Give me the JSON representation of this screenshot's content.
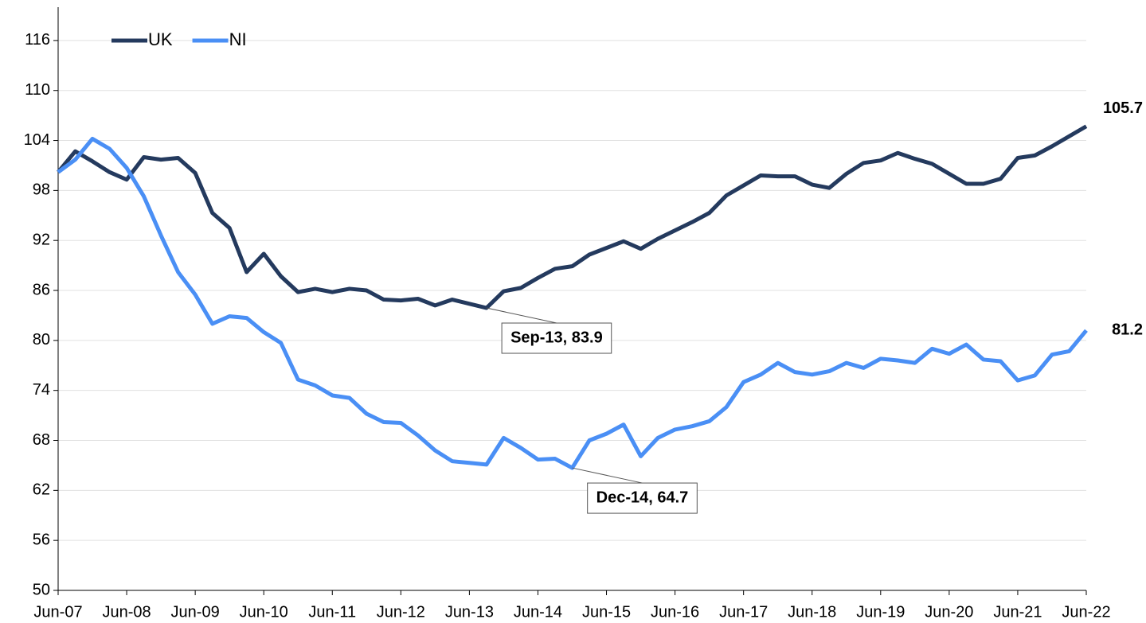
{
  "chart_data": {
    "type": "line",
    "categories": [
      "Jun-07",
      null,
      null,
      null,
      "Jun-08",
      null,
      null,
      null,
      "Jun-09",
      null,
      null,
      null,
      "Jun-10",
      null,
      null,
      null,
      "Jun-11",
      null,
      null,
      null,
      "Jun-12",
      null,
      null,
      null,
      "Jun-13",
      null,
      null,
      null,
      "Jun-14",
      null,
      null,
      null,
      "Jun-15",
      null,
      null,
      null,
      "Jun-16",
      null,
      null,
      null,
      "Jun-17",
      null,
      null,
      null,
      "Jun-18",
      null,
      null,
      null,
      "Jun-19",
      null,
      null,
      null,
      "Jun-20",
      null,
      null,
      null,
      "Jun-21",
      null,
      null,
      null,
      "Jun-22"
    ],
    "series": [
      {
        "name": "UK",
        "color": "#243a5e",
        "values": [
          100.2,
          102.7,
          101.5,
          100.2,
          99.3,
          102.0,
          101.7,
          101.9,
          100.1,
          95.3,
          93.5,
          88.2,
          90.4,
          87.7,
          85.8,
          86.2,
          85.8,
          86.2,
          86.0,
          84.9,
          84.8,
          85.0,
          84.2,
          84.9,
          84.4,
          83.9,
          85.9,
          86.3,
          87.5,
          88.6,
          88.9,
          90.3,
          91.1,
          91.9,
          91.0,
          92.2,
          93.2,
          94.2,
          95.3,
          97.4,
          98.6,
          99.8,
          99.7,
          99.7,
          98.7,
          98.3,
          100.0,
          101.3,
          101.6,
          102.5,
          101.8,
          101.2,
          100.0,
          98.8,
          98.8,
          99.4,
          101.9,
          102.2,
          103.3,
          104.5,
          105.7
        ],
        "value_labels": [
          null,
          null,
          null,
          null,
          null,
          null,
          null,
          null,
          null,
          null,
          null,
          null,
          null,
          null,
          null,
          null,
          null,
          null,
          null,
          null,
          null,
          null,
          null,
          null,
          null,
          "Sep-13, 83.9",
          null,
          null,
          null,
          null,
          null,
          null,
          null,
          null,
          null,
          null,
          null,
          null,
          null,
          null,
          null,
          null,
          null,
          null,
          null,
          null,
          null,
          null,
          null,
          null,
          null,
          null,
          null,
          null,
          null,
          null,
          null,
          null,
          null,
          null,
          "105.7"
        ]
      },
      {
        "name": "NI",
        "color": "#4a8ff5",
        "values": [
          100.2,
          101.7,
          104.2,
          103.0,
          100.7,
          97.3,
          92.6,
          88.2,
          85.5,
          82.0,
          82.9,
          82.7,
          81.0,
          79.7,
          75.3,
          74.6,
          73.4,
          73.1,
          71.2,
          70.2,
          70.1,
          68.6,
          66.8,
          65.5,
          65.3,
          65.1,
          68.3,
          67.1,
          65.7,
          65.8,
          64.7,
          68.0,
          68.8,
          69.9,
          66.1,
          68.3,
          69.3,
          69.7,
          70.3,
          72.0,
          75.0,
          75.9,
          77.3,
          76.2,
          75.9,
          76.3,
          77.3,
          76.7,
          77.8,
          77.6,
          77.3,
          79.0,
          78.4,
          79.5,
          77.7,
          77.5,
          75.2,
          75.8,
          78.3,
          78.7,
          81.2
        ],
        "value_labels": [
          null,
          null,
          null,
          null,
          null,
          null,
          null,
          null,
          null,
          null,
          null,
          null,
          null,
          null,
          null,
          null,
          null,
          null,
          null,
          null,
          null,
          null,
          null,
          null,
          null,
          null,
          null,
          null,
          null,
          null,
          "Dec-14, 64.7",
          null,
          null,
          null,
          null,
          null,
          null,
          null,
          null,
          null,
          null,
          null,
          null,
          null,
          null,
          null,
          null,
          null,
          null,
          null,
          null,
          null,
          null,
          null,
          null,
          null,
          null,
          null,
          null,
          null,
          "81.2"
        ]
      }
    ],
    "ylim": [
      50,
      120
    ],
    "yticks": [
      50,
      56,
      62,
      68,
      74,
      80,
      86,
      92,
      98,
      104,
      110,
      116
    ],
    "grid": true,
    "legend": "top-left"
  }
}
